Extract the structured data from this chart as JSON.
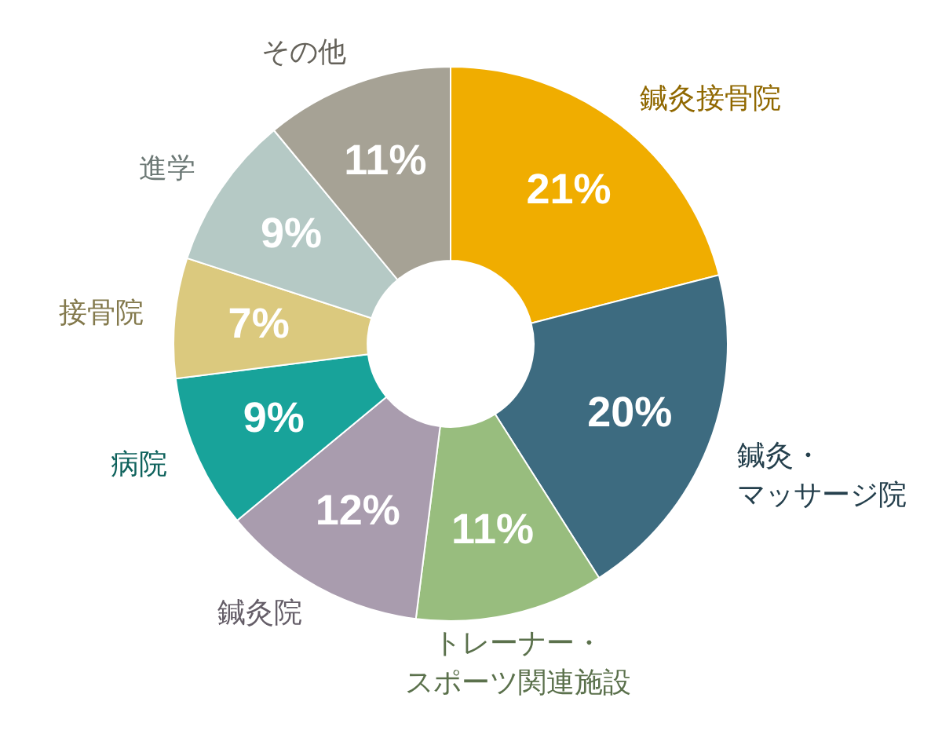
{
  "chart_data": {
    "type": "donut",
    "categories": [
      "鍼灸接骨院",
      "鍼灸・マッサージ院",
      "トレーナー・スポーツ関連施設",
      "鍼灸院",
      "病院",
      "接骨院",
      "進学",
      "その他"
    ],
    "values": [
      21,
      20,
      11,
      12,
      9,
      7,
      9,
      11
    ],
    "value_labels": [
      "21%",
      "20%",
      "11%",
      "12%",
      "9%",
      "7%",
      "9%",
      "11%"
    ],
    "colors": [
      "#f0ad00",
      "#3d6b80",
      "#98bd7e",
      "#a99cae",
      "#18a39a",
      "#dbc97e",
      "#b5c9c5",
      "#a6a295"
    ],
    "legend": false
  }
}
